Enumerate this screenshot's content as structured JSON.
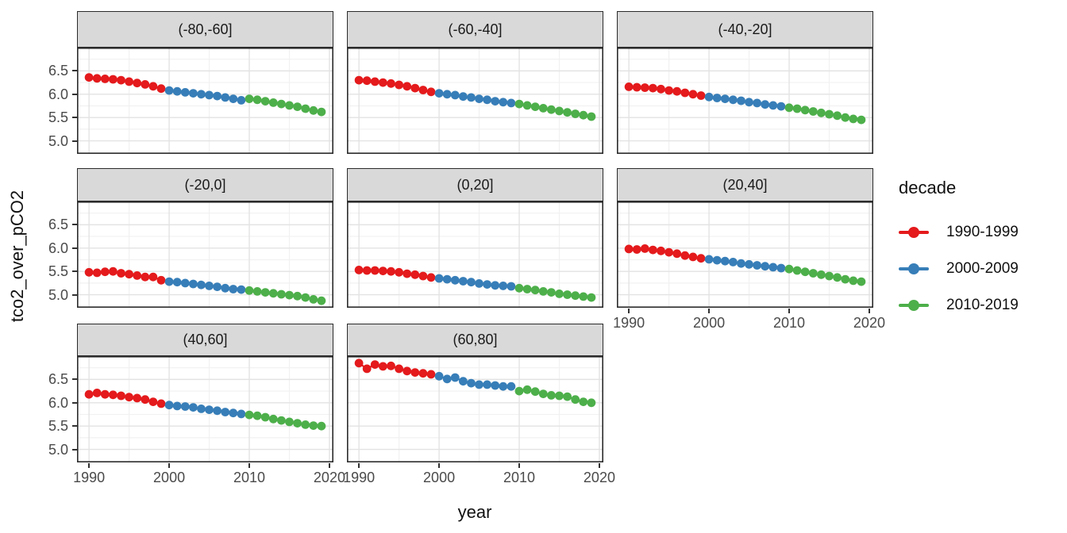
{
  "chart_data": {
    "type": "line",
    "title": "",
    "xlabel": "year",
    "ylabel": "tco2_over_pCO2",
    "grid": true,
    "legend_position": "right",
    "xlim": [
      1988.5,
      2020.5
    ],
    "ylim": [
      4.72,
      7.0
    ],
    "x_ticks": [
      {
        "label": "1990",
        "value": 1990
      },
      {
        "label": "2000",
        "value": 2000
      },
      {
        "label": "2010",
        "value": 2010
      },
      {
        "label": "2020",
        "value": 2020
      }
    ],
    "y_ticks": [
      {
        "label": "6.5",
        "value": 6.5
      },
      {
        "label": "6.0",
        "value": 6.0
      },
      {
        "label": "5.5",
        "value": 5.5
      },
      {
        "label": "5.0",
        "value": 5.0
      }
    ],
    "x_minor": [
      1995,
      2005,
      2015
    ],
    "y_minor": [
      5.25,
      5.75,
      6.25,
      6.75
    ],
    "legend": {
      "title": "decade",
      "entries": [
        {
          "label": "1990-1999",
          "color": "#e41a1c"
        },
        {
          "label": "2000-2009",
          "color": "#377eb8"
        },
        {
          "label": "2010-2019",
          "color": "#4daf4a"
        }
      ]
    },
    "facets": [
      {
        "label": "(-80,-60]",
        "row": 0,
        "col": 0,
        "show_y_axis": true,
        "show_x_axis": false,
        "series": [
          {
            "name": "1990-1999",
            "x_start": 1990,
            "values": [
              6.36,
              6.34,
              6.33,
              6.32,
              6.3,
              6.27,
              6.24,
              6.21,
              6.17,
              6.12
            ]
          },
          {
            "name": "2000-2009",
            "x_start": 2000,
            "values": [
              6.08,
              6.06,
              6.04,
              6.02,
              6.0,
              5.98,
              5.96,
              5.93,
              5.9,
              5.87
            ]
          },
          {
            "name": "2010-2019",
            "x_start": 2010,
            "values": [
              5.9,
              5.88,
              5.85,
              5.82,
              5.79,
              5.76,
              5.73,
              5.69,
              5.65,
              5.62
            ]
          }
        ]
      },
      {
        "label": "(-60,-40]",
        "row": 0,
        "col": 1,
        "show_y_axis": false,
        "show_x_axis": false,
        "series": [
          {
            "name": "1990-1999",
            "x_start": 1990,
            "values": [
              6.3,
              6.29,
              6.27,
              6.25,
              6.23,
              6.2,
              6.17,
              6.13,
              6.09,
              6.05
            ]
          },
          {
            "name": "2000-2009",
            "x_start": 2000,
            "values": [
              6.02,
              6.0,
              5.98,
              5.95,
              5.93,
              5.9,
              5.88,
              5.85,
              5.83,
              5.81
            ]
          },
          {
            "name": "2010-2019",
            "x_start": 2010,
            "values": [
              5.79,
              5.76,
              5.73,
              5.7,
              5.67,
              5.64,
              5.61,
              5.58,
              5.55,
              5.52
            ]
          }
        ]
      },
      {
        "label": "(-40,-20]",
        "row": 0,
        "col": 2,
        "show_y_axis": false,
        "show_x_axis": false,
        "series": [
          {
            "name": "1990-1999",
            "x_start": 1990,
            "values": [
              6.16,
              6.15,
              6.14,
              6.13,
              6.11,
              6.08,
              6.06,
              6.03,
              6.0,
              5.97
            ]
          },
          {
            "name": "2000-2009",
            "x_start": 2000,
            "values": [
              5.94,
              5.92,
              5.9,
              5.88,
              5.86,
              5.83,
              5.81,
              5.78,
              5.76,
              5.74
            ]
          },
          {
            "name": "2010-2019",
            "x_start": 2010,
            "values": [
              5.71,
              5.69,
              5.66,
              5.63,
              5.6,
              5.57,
              5.54,
              5.5,
              5.47,
              5.45
            ]
          }
        ]
      },
      {
        "label": "(-20,0]",
        "row": 1,
        "col": 0,
        "show_y_axis": true,
        "show_x_axis": false,
        "series": [
          {
            "name": "1990-1999",
            "x_start": 1990,
            "values": [
              5.48,
              5.47,
              5.49,
              5.5,
              5.46,
              5.44,
              5.41,
              5.38,
              5.38,
              5.31
            ]
          },
          {
            "name": "2000-2009",
            "x_start": 2000,
            "values": [
              5.28,
              5.27,
              5.25,
              5.23,
              5.21,
              5.19,
              5.17,
              5.14,
              5.12,
              5.11
            ]
          },
          {
            "name": "2010-2019",
            "x_start": 2010,
            "values": [
              5.09,
              5.07,
              5.05,
              5.03,
              5.01,
              4.99,
              4.97,
              4.94,
              4.9,
              4.87
            ]
          }
        ]
      },
      {
        "label": "(0,20]",
        "row": 1,
        "col": 1,
        "show_y_axis": false,
        "show_x_axis": false,
        "series": [
          {
            "name": "1990-1999",
            "x_start": 1990,
            "values": [
              5.53,
              5.52,
              5.52,
              5.51,
              5.5,
              5.48,
              5.45,
              5.43,
              5.4,
              5.37
            ]
          },
          {
            "name": "2000-2009",
            "x_start": 2000,
            "values": [
              5.35,
              5.33,
              5.31,
              5.29,
              5.27,
              5.24,
              5.22,
              5.2,
              5.19,
              5.18
            ]
          },
          {
            "name": "2010-2019",
            "x_start": 2010,
            "values": [
              5.14,
              5.12,
              5.1,
              5.07,
              5.05,
              5.02,
              5.0,
              4.98,
              4.96,
              4.94
            ]
          }
        ]
      },
      {
        "label": "(20,40]",
        "row": 1,
        "col": 2,
        "show_y_axis": false,
        "show_x_axis": true,
        "series": [
          {
            "name": "1990-1999",
            "x_start": 1990,
            "values": [
              5.98,
              5.97,
              5.99,
              5.96,
              5.94,
              5.91,
              5.88,
              5.84,
              5.81,
              5.78
            ]
          },
          {
            "name": "2000-2009",
            "x_start": 2000,
            "values": [
              5.76,
              5.74,
              5.72,
              5.7,
              5.67,
              5.65,
              5.63,
              5.61,
              5.59,
              5.57
            ]
          },
          {
            "name": "2010-2019",
            "x_start": 2010,
            "values": [
              5.55,
              5.52,
              5.49,
              5.46,
              5.43,
              5.4,
              5.37,
              5.33,
              5.3,
              5.28
            ]
          }
        ]
      },
      {
        "label": "(40,60]",
        "row": 2,
        "col": 0,
        "show_y_axis": true,
        "show_x_axis": true,
        "series": [
          {
            "name": "1990-1999",
            "x_start": 1990,
            "values": [
              6.18,
              6.21,
              6.18,
              6.17,
              6.15,
              6.12,
              6.1,
              6.07,
              6.02,
              5.98
            ]
          },
          {
            "name": "2000-2009",
            "x_start": 2000,
            "values": [
              5.95,
              5.93,
              5.92,
              5.9,
              5.87,
              5.85,
              5.83,
              5.8,
              5.78,
              5.76
            ]
          },
          {
            "name": "2010-2019",
            "x_start": 2010,
            "values": [
              5.74,
              5.72,
              5.69,
              5.65,
              5.62,
              5.59,
              5.56,
              5.53,
              5.51,
              5.5
            ]
          }
        ]
      },
      {
        "label": "(60,80]",
        "row": 2,
        "col": 1,
        "show_y_axis": false,
        "show_x_axis": true,
        "series": [
          {
            "name": "1990-1999",
            "x_start": 1990,
            "values": [
              6.85,
              6.73,
              6.82,
              6.78,
              6.79,
              6.73,
              6.68,
              6.65,
              6.63,
              6.61
            ]
          },
          {
            "name": "2000-2009",
            "x_start": 2000,
            "values": [
              6.57,
              6.51,
              6.54,
              6.46,
              6.42,
              6.39,
              6.39,
              6.37,
              6.35,
              6.35
            ]
          },
          {
            "name": "2010-2019",
            "x_start": 2010,
            "values": [
              6.25,
              6.28,
              6.24,
              6.19,
              6.16,
              6.15,
              6.13,
              6.07,
              6.02,
              6.0
            ]
          }
        ]
      }
    ]
  }
}
